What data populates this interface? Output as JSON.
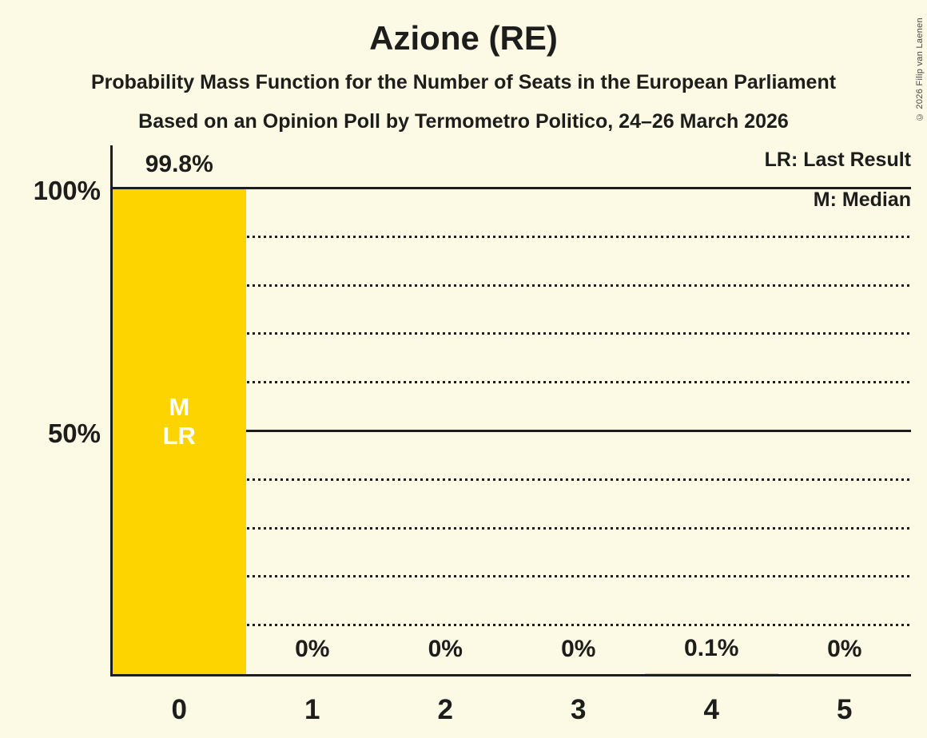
{
  "title": "Azione (RE)",
  "subtitle1": "Probability Mass Function for the Number of Seats in the European Parliament",
  "subtitle2": "Based on an Opinion Poll by Termometro Politico, 24–26 March 2026",
  "copyright": "© 2026 Filip van Laenen",
  "colors": {
    "background": "#FCF9E4",
    "bar": "#FDD400",
    "text": "#1D1D1B",
    "bar_annotation_text": "#FFFFFF",
    "copyright_text": "#4A4A44"
  },
  "chart_data": {
    "type": "bar",
    "title": "Azione (RE)",
    "categories": [
      "0",
      "1",
      "2",
      "3",
      "4",
      "5"
    ],
    "values": [
      99.8,
      0,
      0,
      0,
      0.1,
      0
    ],
    "value_labels": [
      "99.8%",
      "0%",
      "0%",
      "0%",
      "0.1%",
      "0%"
    ],
    "ylim": [
      0,
      100
    ],
    "ytick_labels": [
      "100%",
      "50%"
    ],
    "ytick_values": [
      100,
      50
    ],
    "grid_solid_percent": [
      100,
      50
    ],
    "grid_dotted_percent": [
      90,
      80,
      70,
      60,
      40,
      30,
      20,
      10
    ],
    "legend": [
      "LR: Last Result",
      "M: Median"
    ],
    "legend_position": "top-right",
    "annotations": {
      "median": "M",
      "last_result": "LR"
    },
    "median_category": "0",
    "last_result_category": "0",
    "bar_color": "#FDD400"
  }
}
